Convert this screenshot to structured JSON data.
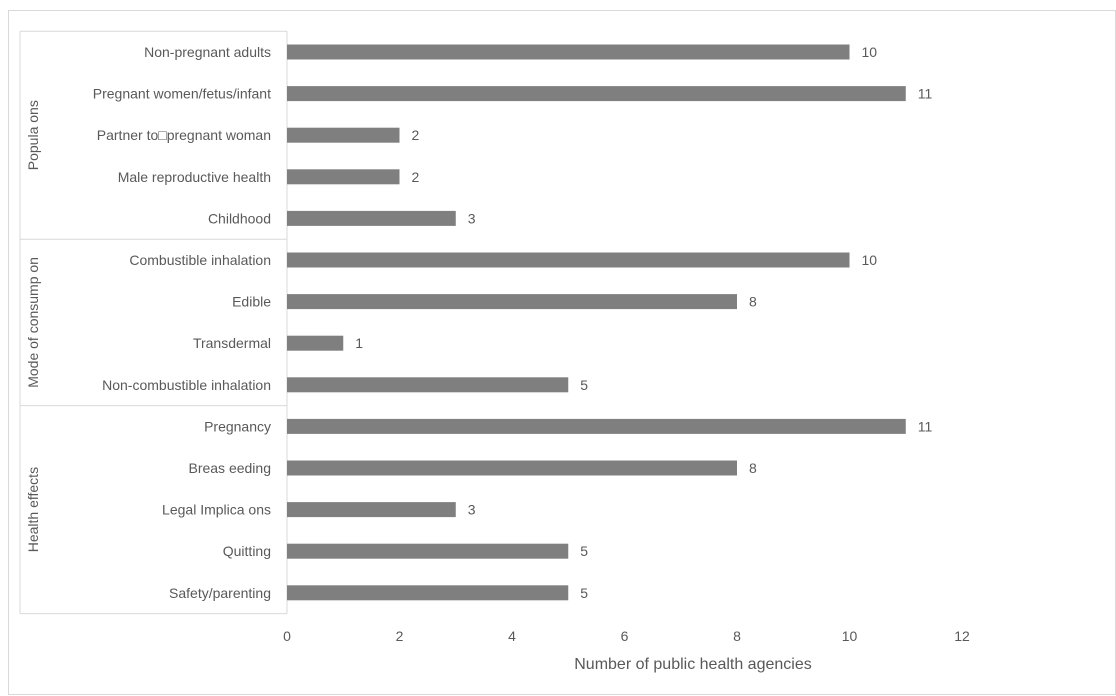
{
  "chart_data": {
    "type": "bar",
    "orientation": "horizontal",
    "xlabel": "Number of public health agencies",
    "ylabel": "",
    "xlim": [
      0,
      12
    ],
    "x_ticks": [
      "0",
      "2",
      "4",
      "6",
      "8",
      "10",
      "12"
    ],
    "grid": false,
    "legend": "none",
    "groups": [
      {
        "label": "Popula ons",
        "categories": [
          "Non-pregnant adults",
          "Pregnant women/fetus/infant",
          "Partner to□pregnant woman",
          "Male reproductive health",
          "Childhood"
        ],
        "values": [
          10,
          11,
          2,
          2,
          3
        ]
      },
      {
        "label": "Mode of consump on",
        "categories": [
          "Combustible inhalation",
          "Edible",
          "Transdermal",
          "Non-combustible inhalation"
        ],
        "values": [
          10,
          8,
          1,
          5
        ]
      },
      {
        "label": "Health effects",
        "categories": [
          "Pregnancy",
          "Breas eeding",
          "Legal Implica ons",
          "Quitting",
          "Safety/parenting"
        ],
        "values": [
          11,
          8,
          3,
          5,
          5
        ]
      }
    ],
    "colors": {
      "bar": "#7f7f7f",
      "text": "#595959",
      "border": "#d9d9d9"
    }
  }
}
